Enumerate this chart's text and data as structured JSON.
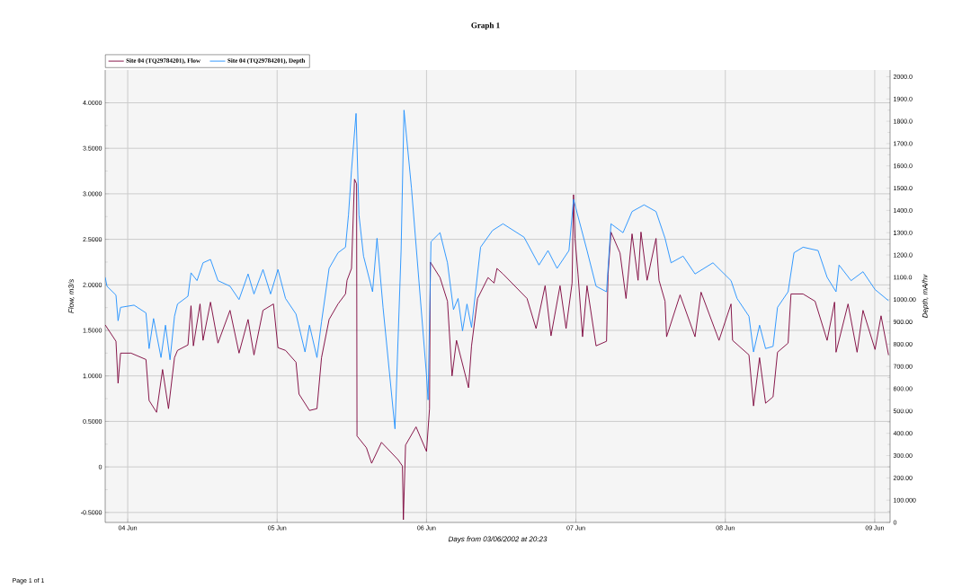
{
  "chart_data": {
    "type": "line",
    "title": "Graph 1",
    "xlabel": "Days from 03/06/2002 at 20:23",
    "ylabel": "Flow, m3/s",
    "y2label": "Depth, mA/hv",
    "annotations": [
      "Page 1 of 1"
    ],
    "legend": "top left",
    "grid": true,
    "xlim": [
      "2002-06-03T20:23",
      "2002-06-09T02:28"
    ],
    "xticks": [
      {
        "value": "2002-06-04",
        "label": "04 Jun"
      },
      {
        "value": "2002-06-05",
        "label": "05 Jun"
      },
      {
        "value": "2002-06-06",
        "label": "06 Jun"
      },
      {
        "value": "2002-06-07",
        "label": "07 Jun"
      },
      {
        "value": "2002-06-08",
        "label": "08 Jun"
      },
      {
        "value": "2002-06-09",
        "label": "09 Jun"
      }
    ],
    "ylim": [
      -0.61,
      4.36
    ],
    "yticks": [
      {
        "value": -0.5,
        "label": "-0.5000"
      },
      0,
      {
        "value": 0.5,
        "label": "0.5000"
      },
      {
        "value": 1,
        "label": "1.0000"
      },
      {
        "value": 1.5,
        "label": "1.5000"
      },
      {
        "value": 2,
        "label": "2.0000"
      },
      {
        "value": 2.5,
        "label": "2.5000"
      },
      {
        "value": 3,
        "label": "3.0000"
      },
      {
        "value": 3.5,
        "label": "3.5000"
      },
      {
        "value": 4,
        "label": "4.0000"
      }
    ],
    "y2lim": [
      0,
      2030
    ],
    "y2ticks": [
      0,
      {
        "value": 100,
        "label": "100.000"
      },
      {
        "value": 200,
        "label": "200.00"
      },
      {
        "value": 300,
        "label": "300.00"
      },
      {
        "value": 400,
        "label": "400.00"
      },
      {
        "value": 500,
        "label": "500.00"
      },
      {
        "value": 600,
        "label": "600.00"
      },
      {
        "value": 700,
        "label": "700.00"
      },
      {
        "value": 800,
        "label": "800.00"
      },
      {
        "value": 900,
        "label": "900.00"
      },
      {
        "value": 1000,
        "label": "1000.00"
      },
      {
        "value": 1100,
        "label": "1100.0"
      },
      {
        "value": 1200,
        "label": "1200.0"
      },
      {
        "value": 1300,
        "label": "1300.0"
      },
      {
        "value": 1400,
        "label": "1400.0"
      },
      {
        "value": 1500,
        "label": "1500.0"
      },
      {
        "value": 1600,
        "label": "1600.0"
      },
      {
        "value": 1700,
        "label": "1700.0"
      },
      {
        "value": 1800,
        "label": "1800.0"
      },
      {
        "value": 1900,
        "label": "1900.0"
      },
      {
        "value": 2000,
        "label": "2000.0"
      }
    ],
    "series": [
      {
        "name": "Site 04 (TQ29784201), Flow",
        "color": "#7b0039",
        "x": [
          "2002-06-03T20:23",
          "2002-06-03T22:07",
          "2002-06-03T22:27",
          "2002-06-03T22:51",
          "2002-06-04T00:32",
          "2002-06-04T02:56",
          "2002-06-04T03:26",
          "2002-06-04T04:38",
          "2002-06-04T05:36",
          "2002-06-04T06:33",
          "2002-06-04T07:31",
          "2002-06-04T08:00",
          "2002-06-04T09:41",
          "2002-06-04T10:10",
          "2002-06-04T10:33",
          "2002-06-04T11:37",
          "2002-06-04T12:06",
          "2002-06-04T13:18",
          "2002-06-04T14:30",
          "2002-06-04T16:26",
          "2002-06-04T17:53",
          "2002-06-04T19:20",
          "2002-06-04T20:17",
          "2002-06-04T21:44",
          "2002-06-04T23:25",
          "2002-06-05T00:08",
          "2002-06-05T01:21",
          "2002-06-05T03:02",
          "2002-06-05T03:31",
          "2002-06-05T05:12",
          "2002-06-05T06:24",
          "2002-06-05T07:08",
          "2002-06-05T08:21",
          "2002-06-05T09:47",
          "2002-06-05T10:59",
          "2002-06-05T11:14",
          "2002-06-05T11:57",
          "2002-06-05T12:26",
          "2002-06-05T12:46",
          "2002-06-05T12:50",
          "2002-06-05T14:21",
          "2002-06-05T15:11",
          "2002-06-05T16:46",
          "2002-06-05T19:25",
          "2002-06-05T20:08",
          "2002-06-05T20:17",
          "2002-06-05T20:38",
          "2002-06-05T22:19",
          "2002-06-06T00:00",
          "2002-06-06T00:29",
          "2002-06-06T00:37",
          "2002-06-06T02:10",
          "2002-06-06T03:22",
          "2002-06-06T04:06",
          "2002-06-06T04:49",
          "2002-06-06T06:45",
          "2002-06-06T07:14",
          "2002-06-06T08:12",
          "2002-06-06T09:53",
          "2002-06-06T10:51",
          "2002-06-06T11:19",
          "2002-06-06T12:17",
          "2002-06-06T16:09",
          "2002-06-06T17:36",
          "2002-06-06T19:03",
          "2002-06-06T20:00",
          "2002-06-06T21:27",
          "2002-06-06T22:25",
          "2002-06-06T23:23",
          "2002-06-06T23:37",
          "2002-06-06T23:51",
          "2002-06-07T00:20",
          "2002-06-07T01:04",
          "2002-06-07T01:47",
          "2002-06-07T03:14",
          "2002-06-07T04:55",
          "2002-06-07T05:10",
          "2002-06-07T05:38",
          "2002-06-07T07:05",
          "2002-06-07T08:03",
          "2002-06-07T09:01",
          "2002-06-07T09:59",
          "2002-06-07T10:27",
          "2002-06-07T11:26",
          "2002-06-07T12:52",
          "2002-06-07T13:21",
          "2002-06-07T14:19",
          "2002-06-07T14:34",
          "2002-06-07T16:44",
          "2002-06-07T19:08",
          "2002-06-07T20:06",
          "2002-06-07T22:59",
          "2002-06-08T00:55",
          "2002-06-08T01:10",
          "2002-06-08T03:48",
          "2002-06-08T04:32",
          "2002-06-08T05:30",
          "2002-06-08T06:28",
          "2002-06-08T07:40",
          "2002-06-08T08:23",
          "2002-06-08T10:05",
          "2002-06-08T10:33",
          "2002-06-08T12:29",
          "2002-06-08T14:25",
          "2002-06-08T16:21",
          "2002-06-08T17:33",
          "2002-06-08T17:47",
          "2002-06-08T19:43",
          "2002-06-08T21:10",
          "2002-06-08T22:07",
          "2002-06-09T00:03",
          "2002-06-09T01:01",
          "2002-06-09T02:13"
        ],
        "values": [
          1.56,
          1.38,
          0.92,
          1.25,
          1.25,
          1.18,
          0.73,
          0.6,
          1.07,
          0.64,
          1.2,
          1.28,
          1.34,
          1.77,
          1.33,
          1.79,
          1.39,
          1.81,
          1.36,
          1.72,
          1.25,
          1.62,
          1.23,
          1.72,
          1.79,
          1.31,
          1.28,
          1.15,
          0.8,
          0.62,
          0.64,
          1.2,
          1.62,
          1.79,
          1.9,
          2.05,
          2.18,
          3.16,
          3.11,
          0.34,
          0.21,
          0.04,
          0.27,
          0.08,
          0.01,
          -0.58,
          0.24,
          0.44,
          0.17,
          0.64,
          2.25,
          2.08,
          1.82,
          1.0,
          1.39,
          0.87,
          1.33,
          1.85,
          2.08,
          2.02,
          2.18,
          2.12,
          1.85,
          1.52,
          1.99,
          1.44,
          1.99,
          1.52,
          2.02,
          2.99,
          2.51,
          2.12,
          1.43,
          1.99,
          1.33,
          1.38,
          2.12,
          2.58,
          2.35,
          1.85,
          2.56,
          2.05,
          2.58,
          2.05,
          2.51,
          2.05,
          1.82,
          1.43,
          1.89,
          1.43,
          1.92,
          1.39,
          1.79,
          1.39,
          1.23,
          0.67,
          1.2,
          0.7,
          0.77,
          1.26,
          1.36,
          1.9,
          1.9,
          1.82,
          1.39,
          1.81,
          1.26,
          1.79,
          1.26,
          1.72,
          1.29,
          1.66,
          1.23
        ]
      },
      {
        "name": "Site 04 (TQ29784201), Depth",
        "color": "#1e8fff",
        "axis": "y2",
        "x": [
          "2002-06-03T20:23",
          "2002-06-03T20:40",
          "2002-06-03T22:07",
          "2002-06-03T22:27",
          "2002-06-03T22:51",
          "2002-06-04T01:01",
          "2002-06-04T02:56",
          "2002-06-04T03:26",
          "2002-06-04T04:09",
          "2002-06-04T05:21",
          "2002-06-04T06:04",
          "2002-06-04T06:48",
          "2002-06-04T07:31",
          "2002-06-04T08:00",
          "2002-06-04T09:41",
          "2002-06-04T10:10",
          "2002-06-04T11:08",
          "2002-06-04T12:06",
          "2002-06-04T13:18",
          "2002-06-04T14:30",
          "2002-06-04T16:26",
          "2002-06-04T17:53",
          "2002-06-04T19:20",
          "2002-06-04T20:17",
          "2002-06-04T21:44",
          "2002-06-04T22:57",
          "2002-06-05T00:08",
          "2002-06-05T01:21",
          "2002-06-05T03:02",
          "2002-06-05T04:29",
          "2002-06-05T05:12",
          "2002-06-05T06:24",
          "2002-06-05T07:08",
          "2002-06-05T08:21",
          "2002-06-05T09:47",
          "2002-06-05T10:59",
          "2002-06-05T11:28",
          "2002-06-05T11:57",
          "2002-06-05T12:41",
          "2002-06-05T13:09",
          "2002-06-05T13:53",
          "2002-06-05T15:20",
          "2002-06-05T16:03",
          "2002-06-05T17:01",
          "2002-06-05T18:56",
          "2002-06-05T19:55",
          "2002-06-05T20:23",
          "2002-06-05T21:35",
          "2002-06-06T00:00",
          "2002-06-06T00:15",
          "2002-06-06T00:43",
          "2002-06-06T02:10",
          "2002-06-06T03:22",
          "2002-06-06T04:20",
          "2002-06-06T05:04",
          "2002-06-06T05:47",
          "2002-06-06T06:30",
          "2002-06-06T07:14",
          "2002-06-06T08:41",
          "2002-06-06T10:36",
          "2002-06-06T12:17",
          "2002-06-06T15:40",
          "2002-06-06T18:04",
          "2002-06-06T19:31",
          "2002-06-06T20:58",
          "2002-06-06T22:53",
          "2002-06-06T23:37",
          "2002-06-07T01:47",
          "2002-06-07T03:14",
          "2002-06-07T04:55",
          "2002-06-07T05:38",
          "2002-06-07T07:34",
          "2002-06-07T09:01",
          "2002-06-07T10:57",
          "2002-06-07T12:52",
          "2002-06-07T14:19",
          "2002-06-07T15:17",
          "2002-06-07T17:13",
          "2002-06-07T19:08",
          "2002-06-07T22:01",
          "2002-06-08T00:55",
          "2002-06-08T01:53",
          "2002-06-08T03:48",
          "2002-06-08T04:32",
          "2002-06-08T05:30",
          "2002-06-08T06:28",
          "2002-06-08T07:40",
          "2002-06-08T08:23",
          "2002-06-08T10:05",
          "2002-06-08T11:02",
          "2002-06-08T12:29",
          "2002-06-08T14:54",
          "2002-06-08T16:21",
          "2002-06-08T17:47",
          "2002-06-08T18:16",
          "2002-06-08T20:12",
          "2002-06-08T22:07",
          "2002-06-09T00:03",
          "2002-06-09T02:13"
        ],
        "values": [
          1100,
          1060,
          1020,
          905,
          965,
          975,
          940,
          780,
          915,
          740,
          885,
          730,
          925,
          980,
          1015,
          1120,
          1085,
          1165,
          1180,
          1085,
          1060,
          1000,
          1115,
          1025,
          1135,
          1025,
          1135,
          1005,
          935,
          765,
          885,
          740,
          900,
          1140,
          1210,
          1235,
          1380,
          1580,
          1835,
          1380,
          1195,
          1035,
          1275,
          965,
          420,
          1220,
          1850,
          1500,
          660,
          550,
          1260,
          1300,
          1165,
          955,
          1005,
          860,
          980,
          875,
          1235,
          1310,
          1340,
          1280,
          1155,
          1220,
          1140,
          1220,
          1450,
          1220,
          1060,
          1035,
          1340,
          1300,
          1395,
          1425,
          1395,
          1275,
          1165,
          1195,
          1115,
          1165,
          1085,
          1005,
          925,
          765,
          885,
          780,
          790,
          965,
          1035,
          1210,
          1235,
          1220,
          1100,
          1035,
          1155,
          1085,
          1125,
          1045,
          995
        ]
      }
    ]
  }
}
